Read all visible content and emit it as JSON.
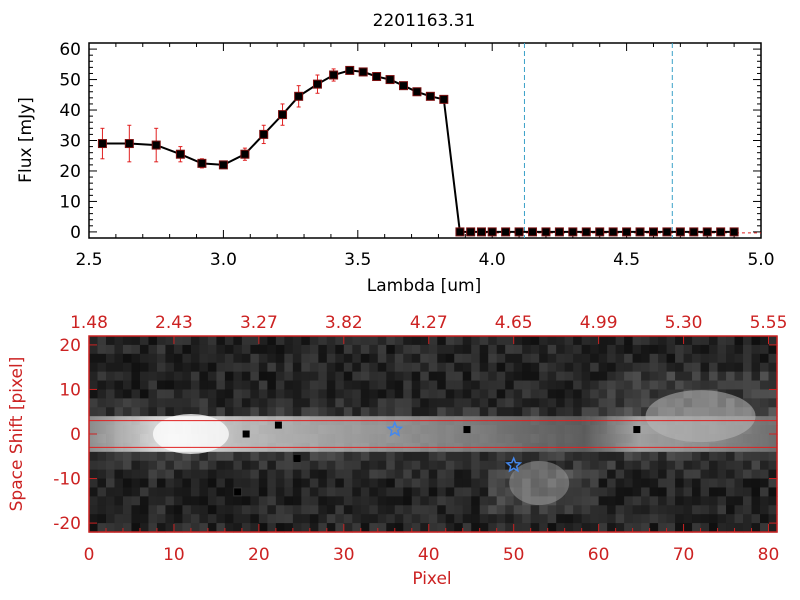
{
  "chart_data": [
    {
      "type": "line",
      "title": "2201163.31",
      "xlabel": "Lambda [um]",
      "ylabel": "Flux [mJy]",
      "xlim": [
        2.5,
        5.0
      ],
      "ylim": [
        -2,
        62
      ],
      "xticks": [
        "2.5",
        "3.0",
        "3.5",
        "4.0",
        "4.5",
        "5.0"
      ],
      "yticks": [
        "0",
        "10",
        "20",
        "30",
        "40",
        "50",
        "60"
      ],
      "colors": {
        "line": "#000000",
        "marker": "#000000",
        "error": "#e02020",
        "vline": "#3aa0c8"
      },
      "vlines": [
        4.12,
        4.67
      ],
      "series": [
        {
          "x": [
            2.55,
            2.65,
            2.75,
            2.84,
            2.92,
            3.0,
            3.08,
            3.15,
            3.22,
            3.28,
            3.35,
            3.41,
            3.47,
            3.52,
            3.57,
            3.62,
            3.67,
            3.72,
            3.77,
            3.82,
            3.88,
            3.92,
            3.96,
            4.0,
            4.05,
            4.1,
            4.15,
            4.2,
            4.25,
            4.3,
            4.35,
            4.4,
            4.45,
            4.5,
            4.55,
            4.6,
            4.65,
            4.7,
            4.75,
            4.8,
            4.85,
            4.9
          ],
          "y": [
            29,
            29,
            28.5,
            25.5,
            22.5,
            22,
            25.5,
            32,
            38.5,
            44.5,
            48.5,
            51.5,
            53,
            52.5,
            51,
            50,
            48,
            46,
            44.5,
            43.5,
            0,
            0,
            0,
            0,
            0,
            0,
            0,
            0,
            0,
            0,
            0,
            0,
            0,
            0,
            0,
            0,
            0,
            0,
            0,
            0,
            0,
            0
          ],
          "err": [
            5,
            6,
            5.5,
            2.5,
            1.5,
            1.2,
            2,
            3,
            3.5,
            3.5,
            3,
            2,
            1,
            1,
            1,
            1,
            1,
            1,
            1,
            1,
            0,
            0,
            0,
            0,
            0,
            0,
            0,
            0,
            0,
            0,
            0,
            0,
            0,
            0,
            0,
            0,
            0,
            0,
            0,
            0,
            0,
            0
          ]
        }
      ]
    },
    {
      "type": "heatmap",
      "xlabel": "Pixel",
      "ylabel": "Space Shift [pixel]",
      "xlim": [
        0,
        81
      ],
      "ylim": [
        -22,
        22
      ],
      "xticks": [
        "0",
        "10",
        "20",
        "30",
        "40",
        "50",
        "60",
        "70",
        "80"
      ],
      "yticks": [
        "-20",
        "-10",
        "0",
        "10",
        "20"
      ],
      "top_ticks": [
        "1.48",
        "2.43",
        "3.27",
        "3.82",
        "4.27",
        "4.65",
        "4.99",
        "5.30",
        "5.55"
      ],
      "colors": {
        "axis": "#cc2222",
        "star": "#4488ee",
        "box": "#e02020"
      },
      "trace_band": [
        -3,
        3
      ],
      "stars": [
        {
          "x": 36,
          "y": 1
        },
        {
          "x": 50,
          "y": -7
        }
      ],
      "dots": [
        {
          "x": 18.5,
          "y": 0
        },
        {
          "x": 22.3,
          "y": 2
        },
        {
          "x": 24.5,
          "y": -5.5
        },
        {
          "x": 44.5,
          "y": 1
        },
        {
          "x": 64.5,
          "y": 1
        },
        {
          "x": 17.5,
          "y": -13
        }
      ]
    }
  ]
}
